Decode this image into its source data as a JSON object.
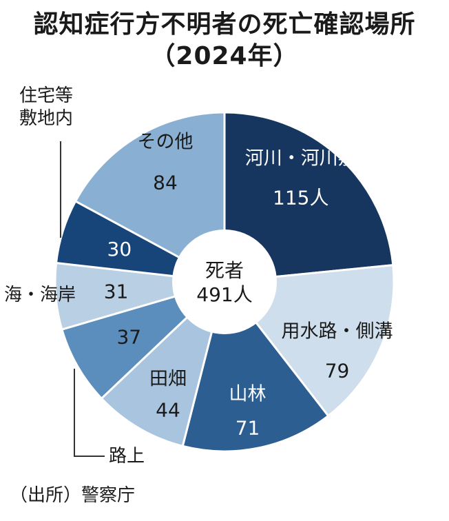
{
  "title_line1": "認知症行方不明者の死亡確認場所",
  "title_line2": "（2024年）",
  "center_label_line1": "死者",
  "center_label_line2": "491人",
  "source": "（出所）警察庁",
  "colors": {
    "navy": "#17365f",
    "light": "#cfdeec",
    "mid_blue": "#2c5e92",
    "pale_blue": "#a9c4de",
    "steel_blue": "#5b8dbd",
    "sky": "#b9cfe3",
    "sky_medium": "#89afd3"
  },
  "chart_data": {
    "type": "pie",
    "donut": true,
    "total_label": "死者491人",
    "slices": [
      {
        "label": "河川・河川敷",
        "value": 115,
        "value_label": "115人",
        "color": "#17365f",
        "text_color": "#ffffff"
      },
      {
        "label": "用水路・側溝",
        "value": 79,
        "value_label": "79",
        "color": "#cfdeec",
        "text_color": "#1a1a1a"
      },
      {
        "label": "山林",
        "value": 71,
        "value_label": "71",
        "color": "#2c5e92",
        "text_color": "#ffffff"
      },
      {
        "label": "田畑",
        "value": 44,
        "value_label": "44",
        "color": "#a9c4de",
        "text_color": "#1a1a1a"
      },
      {
        "label": "路上",
        "value": 37,
        "value_label": "37",
        "color": "#5b8dbd",
        "text_color": "#1a1a1a"
      },
      {
        "label": "海・海岸",
        "value": 31,
        "value_label": "31",
        "color": "#b9cfe3",
        "text_color": "#1a1a1a"
      },
      {
        "label": "住宅等敷地内",
        "value": 30,
        "value_label": "30",
        "color": "#17457a",
        "text_color": "#ffffff"
      },
      {
        "label": "その他",
        "value": 84,
        "value_label": "84",
        "color": "#89afd3",
        "text_color": "#1a1a1a"
      }
    ],
    "outside_labels": {
      "residential_line1": "住宅等",
      "residential_line2": "敷地内",
      "road": "路上",
      "sea": "海・海岸"
    }
  }
}
